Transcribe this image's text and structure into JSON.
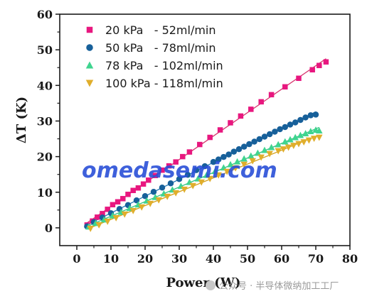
{
  "chart_data": {
    "type": "scatter",
    "title": "",
    "xlabel": "Power (W)",
    "ylabel": "ΔT (K)",
    "xlim": [
      -5,
      80
    ],
    "ylim": [
      -5,
      60
    ],
    "xticks": [
      0,
      10,
      20,
      30,
      40,
      50,
      60,
      70,
      80
    ],
    "yticks": [
      0,
      10,
      20,
      30,
      40,
      50,
      60
    ],
    "grid": false,
    "legend_position": "top-left",
    "series": [
      {
        "name": "20 kPa   - 52ml/min",
        "marker": "square",
        "color": "#e8177f",
        "line_color": "#d6336c",
        "x": [
          3.0,
          4.6,
          6.0,
          7.5,
          9.0,
          10.5,
          12.0,
          13.5,
          15.0,
          16.5,
          18.0,
          19.5,
          21.0,
          23.0,
          25.0,
          27.0,
          29.0,
          31.0,
          33.0,
          36.0,
          39.0,
          42.0,
          45.0,
          48.0,
          51.0,
          54.0,
          57.0,
          61.0,
          65.0,
          69.0,
          71.0,
          73.0
        ],
        "y": [
          0.8,
          1.9,
          3.0,
          4.0,
          5.2,
          6.5,
          7.3,
          8.2,
          9.4,
          10.5,
          11.2,
          12.3,
          13.4,
          14.7,
          16.2,
          17.4,
          18.5,
          20.0,
          21.3,
          23.4,
          25.4,
          27.5,
          29.5,
          31.4,
          33.3,
          35.4,
          37.4,
          39.6,
          42.0,
          44.4,
          45.6,
          46.6
        ]
      },
      {
        "name": "50 kPa   - 78ml/min",
        "marker": "circle",
        "color": "#17609a",
        "line_color": "#1f77b4",
        "x": [
          3.0,
          5.0,
          7.5,
          10.0,
          12.5,
          15.0,
          17.5,
          20.0,
          22.5,
          25.0,
          27.5,
          30.0,
          32.5,
          35.0,
          37.5,
          40.0,
          41.5,
          43.0,
          44.5,
          46.0,
          47.5,
          49.0,
          50.5,
          52.0,
          53.5,
          55.0,
          56.5,
          58.0,
          59.5,
          61.0,
          62.5,
          64.0,
          65.5,
          67.0,
          68.5,
          70.0
        ],
        "y": [
          0.4,
          1.6,
          2.9,
          4.1,
          5.3,
          6.4,
          7.7,
          8.9,
          10.1,
          11.3,
          12.5,
          13.7,
          14.9,
          16.2,
          17.3,
          18.5,
          19.2,
          19.9,
          20.6,
          21.4,
          22.1,
          22.8,
          23.5,
          24.2,
          24.9,
          25.6,
          26.3,
          27.0,
          27.7,
          28.3,
          29.0,
          29.6,
          30.3,
          31.0,
          31.6,
          31.8
        ]
      },
      {
        "name": "78 kPa   - 102ml/min",
        "marker": "triangle-up",
        "color": "#3fd48f",
        "line_color": "#2fbf7f",
        "x": [
          3.5,
          5.5,
          8.0,
          10.5,
          13.0,
          15.5,
          18.0,
          20.5,
          23.0,
          25.5,
          28.0,
          30.5,
          33.0,
          35.5,
          38.0,
          40.5,
          43.0,
          45.0,
          47.0,
          49.0,
          51.0,
          53.0,
          55.0,
          57.0,
          59.0,
          61.0,
          62.5,
          64.0,
          65.5,
          67.0,
          68.5,
          70.0,
          71.0
        ],
        "y": [
          0.3,
          1.3,
          2.3,
          3.4,
          4.4,
          5.5,
          6.5,
          7.6,
          8.6,
          9.6,
          10.7,
          11.7,
          12.8,
          13.8,
          14.8,
          15.9,
          16.9,
          17.8,
          18.6,
          19.4,
          20.2,
          21.0,
          21.8,
          22.6,
          23.4,
          24.2,
          24.8,
          25.4,
          26.0,
          26.5,
          27.1,
          27.5,
          27.3
        ]
      },
      {
        "name": "100 kPa - 118ml/min",
        "marker": "triangle-down",
        "color": "#e0ae2c",
        "line_color": "#d4a017",
        "x": [
          4.0,
          6.5,
          9.0,
          11.5,
          14.0,
          16.5,
          19.0,
          21.5,
          24.0,
          26.5,
          29.0,
          31.5,
          34.0,
          36.5,
          39.0,
          41.5,
          44.0,
          46.5,
          49.0,
          51.5,
          54.0,
          56.5,
          59.0,
          60.5,
          62.0,
          63.5,
          65.0,
          66.5,
          68.0,
          69.5,
          71.0
        ],
        "y": [
          -0.2,
          0.8,
          1.8,
          2.8,
          3.8,
          4.8,
          5.8,
          6.8,
          7.8,
          8.8,
          9.8,
          10.8,
          11.8,
          12.8,
          13.8,
          14.8,
          15.8,
          16.8,
          17.8,
          18.8,
          19.8,
          20.8,
          21.6,
          22.1,
          22.6,
          23.1,
          23.6,
          24.1,
          24.6,
          25.1,
          25.4
        ]
      }
    ]
  },
  "watermark": {
    "text": "omedasemi.com",
    "color": "#2a4fd8"
  },
  "credit": {
    "text": "公众号 · 半导体微纳加工工厂"
  }
}
